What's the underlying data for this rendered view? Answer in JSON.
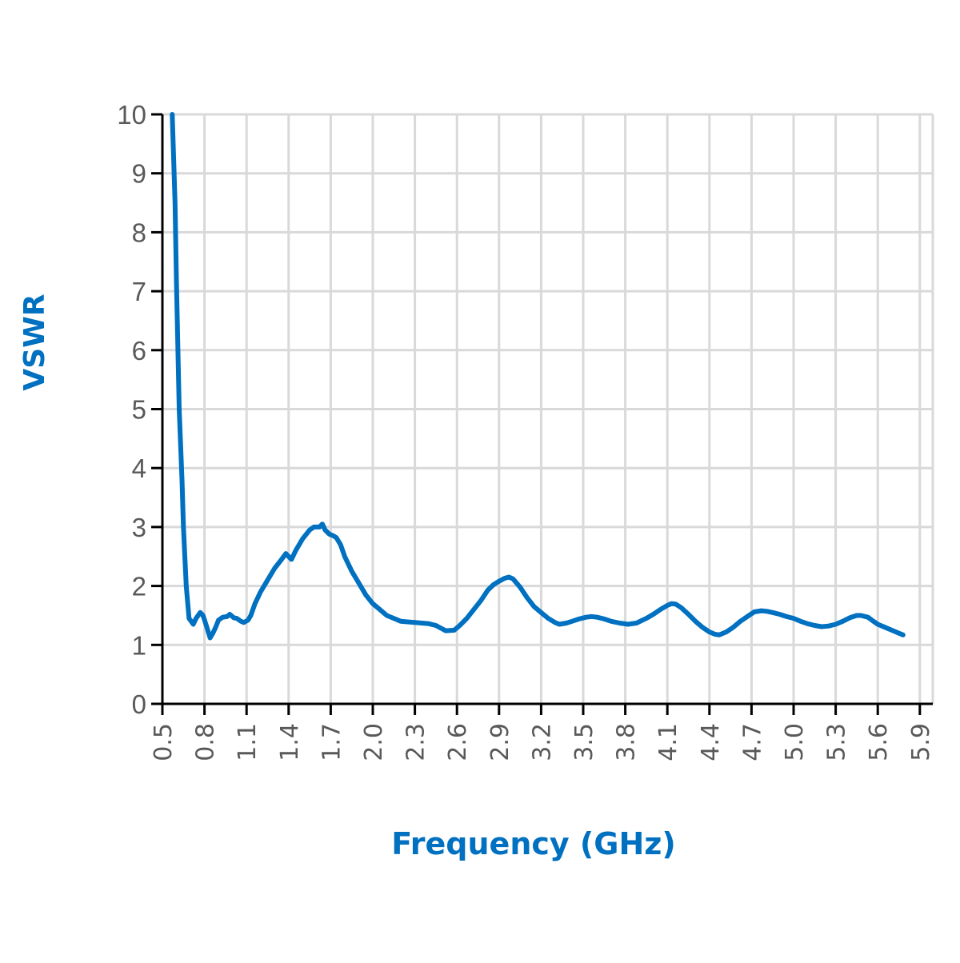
{
  "chart_data": {
    "type": "line",
    "title": "",
    "xlabel": "Frequency (GHz)",
    "ylabel": "VSWR",
    "xlim": [
      0.5,
      5.99
    ],
    "ylim": [
      0,
      10
    ],
    "grid": true,
    "legend": null,
    "x_ticks": [
      "0.5",
      "0.8",
      "1.1",
      "1.4",
      "1.7",
      "2.0",
      "2.3",
      "2.6",
      "2.9",
      "3.2",
      "3.5",
      "3.8",
      "4.1",
      "4.4",
      "4.7",
      "5.0",
      "5.3",
      "5.6",
      "5.9"
    ],
    "y_ticks": [
      "0",
      "1",
      "2",
      "3",
      "4",
      "5",
      "6",
      "7",
      "8",
      "9",
      "10"
    ],
    "series": [
      {
        "name": "VSWR",
        "color": "#0070C0",
        "x": [
          0.57,
          0.59,
          0.6,
          0.62,
          0.64,
          0.65,
          0.67,
          0.69,
          0.72,
          0.74,
          0.77,
          0.79,
          0.81,
          0.84,
          0.86,
          0.88,
          0.9,
          0.93,
          0.96,
          0.98,
          1.01,
          1.03,
          1.06,
          1.08,
          1.11,
          1.13,
          1.16,
          1.2,
          1.25,
          1.3,
          1.35,
          1.38,
          1.4,
          1.42,
          1.45,
          1.5,
          1.55,
          1.58,
          1.62,
          1.64,
          1.66,
          1.69,
          1.72,
          1.74,
          1.77,
          1.8,
          1.85,
          1.9,
          1.95,
          2.0,
          2.05,
          2.1,
          2.15,
          2.2,
          2.3,
          2.4,
          2.45,
          2.52,
          2.58,
          2.62,
          2.67,
          2.72,
          2.77,
          2.82,
          2.86,
          2.9,
          2.94,
          2.97,
          3.0,
          3.05,
          3.1,
          3.15,
          3.2,
          3.25,
          3.3,
          3.33,
          3.38,
          3.42,
          3.47,
          3.52,
          3.56,
          3.6,
          3.65,
          3.7,
          3.76,
          3.82,
          3.88,
          3.95,
          4.0,
          4.05,
          4.1,
          4.13,
          4.16,
          4.2,
          4.25,
          4.3,
          4.35,
          4.4,
          4.44,
          4.47,
          4.52,
          4.57,
          4.62,
          4.67,
          4.72,
          4.77,
          4.81,
          4.85,
          4.9,
          4.95,
          5.0,
          5.05,
          5.1,
          5.15,
          5.2,
          5.25,
          5.3,
          5.35,
          5.4,
          5.45,
          5.48,
          5.53,
          5.57,
          5.6,
          5.65,
          5.7,
          5.75,
          5.78
        ],
        "y": [
          10.0,
          8.5,
          7.2,
          5.0,
          3.8,
          3.0,
          2.0,
          1.45,
          1.35,
          1.45,
          1.55,
          1.5,
          1.35,
          1.12,
          1.2,
          1.3,
          1.42,
          1.47,
          1.48,
          1.52,
          1.46,
          1.45,
          1.4,
          1.38,
          1.42,
          1.5,
          1.7,
          1.9,
          2.1,
          2.3,
          2.45,
          2.55,
          2.5,
          2.45,
          2.6,
          2.8,
          2.95,
          3.0,
          3.0,
          3.05,
          2.95,
          2.88,
          2.85,
          2.82,
          2.7,
          2.5,
          2.25,
          2.05,
          1.85,
          1.7,
          1.6,
          1.5,
          1.45,
          1.4,
          1.38,
          1.36,
          1.33,
          1.24,
          1.25,
          1.33,
          1.45,
          1.6,
          1.75,
          1.93,
          2.02,
          2.08,
          2.13,
          2.15,
          2.12,
          1.98,
          1.8,
          1.65,
          1.55,
          1.45,
          1.38,
          1.35,
          1.37,
          1.4,
          1.44,
          1.47,
          1.48,
          1.47,
          1.44,
          1.4,
          1.37,
          1.35,
          1.37,
          1.45,
          1.52,
          1.6,
          1.67,
          1.7,
          1.69,
          1.63,
          1.52,
          1.4,
          1.3,
          1.22,
          1.18,
          1.17,
          1.22,
          1.3,
          1.4,
          1.48,
          1.56,
          1.58,
          1.57,
          1.55,
          1.52,
          1.48,
          1.45,
          1.4,
          1.36,
          1.33,
          1.31,
          1.32,
          1.35,
          1.4,
          1.46,
          1.5,
          1.5,
          1.47,
          1.4,
          1.35,
          1.3,
          1.25,
          1.2,
          1.17
        ]
      }
    ]
  },
  "labels": {
    "ylabel": "VSWR",
    "xlabel": "Frequency (GHz)"
  },
  "colors": {
    "series": "#0070C0",
    "axis_title": "#0070C0",
    "tick_label": "#595959",
    "grid": "#D9D9D9",
    "axis": "#000000"
  }
}
